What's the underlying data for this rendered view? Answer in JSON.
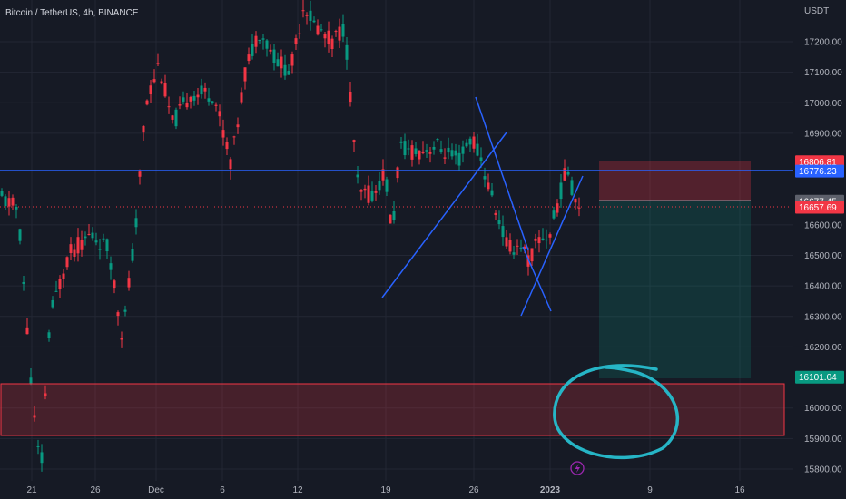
{
  "header": {
    "title": "Bitcoin / TetherUS, 4h, BINANCE",
    "currency": "USDT"
  },
  "price_axis": {
    "ticks": [
      "17200.00",
      "17100.00",
      "17000.00",
      "16900.00",
      "16600.00",
      "16500.00",
      "16400.00",
      "16300.00",
      "16200.00",
      "16000.00",
      "15900.00",
      "15800.00"
    ],
    "tick_values": [
      17200,
      17100,
      17000,
      16900,
      16600,
      16500,
      16400,
      16300,
      16200,
      16000,
      15900,
      15800
    ],
    "scale": {
      "y1": 17200,
      "y2": 15800
    }
  },
  "time_axis": {
    "labels": [
      "21",
      "26",
      "Dec",
      "6",
      "12",
      "19",
      "26",
      "2023",
      "9",
      "16"
    ]
  },
  "price_tags": [
    {
      "label": "16806.81",
      "value": 16806.81,
      "color": "#f23645"
    },
    {
      "label": "16776.23",
      "value": 16776.23,
      "color": "#2962ff"
    },
    {
      "label": "16677.45",
      "value": 16677.45,
      "color": "#5d606b"
    },
    {
      "label": "16657.69",
      "value": 16657.69,
      "color": "#f23645"
    },
    {
      "label": "16101.04",
      "value": 16101.04,
      "color": "#089981"
    }
  ],
  "levels": {
    "horizontal_line": 16776.23,
    "last_price": 16657.69,
    "entry": 16677.45,
    "stop": 16806.81,
    "target": 16101.04
  },
  "zones": {
    "demand_zone": {
      "top": 16085,
      "bottom": 15915,
      "color": "#f23645"
    }
  },
  "colors": {
    "background": "#161a25",
    "up_candle": "#089981",
    "down_candle": "#f23645",
    "trendline": "#2962ff",
    "circle": "#26b5c6",
    "grid": "#232734"
  },
  "icons": {
    "lightning": "lightning-icon"
  }
}
